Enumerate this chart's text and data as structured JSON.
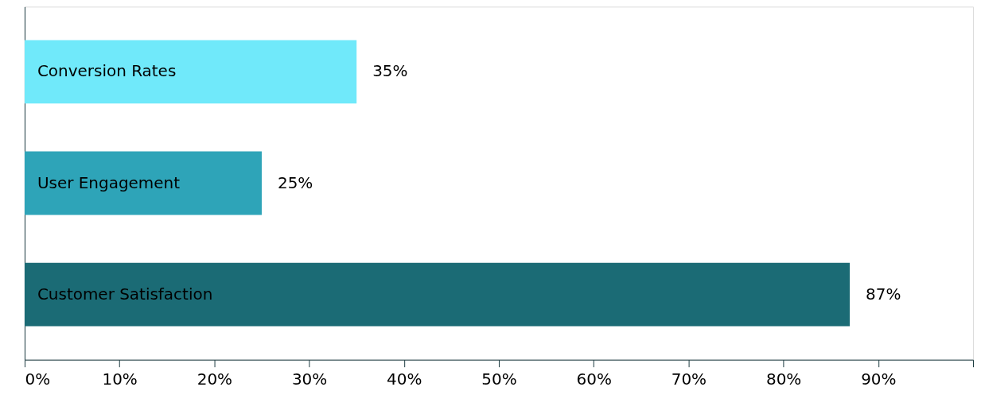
{
  "chart_data": {
    "type": "bar",
    "orientation": "horizontal",
    "categories": [
      "Conversion Rates",
      "User Engagement",
      "Customer Satisfaction"
    ],
    "values": [
      35,
      25,
      87
    ],
    "colors": [
      "#70e9fa",
      "#2ea4b8",
      "#1b6b75"
    ],
    "value_labels": [
      "35%",
      "25%",
      "87%"
    ],
    "xlim": [
      0,
      100
    ],
    "xticks": [
      {
        "value": 0,
        "label": "0%"
      },
      {
        "value": 10,
        "label": "10%"
      },
      {
        "value": 20,
        "label": "20%"
      },
      {
        "value": 30,
        "label": "30%"
      },
      {
        "value": 40,
        "label": "40%"
      },
      {
        "value": 50,
        "label": "50%"
      },
      {
        "value": 60,
        "label": "60%"
      },
      {
        "value": 70,
        "label": "70%"
      },
      {
        "value": 80,
        "label": "80%"
      },
      {
        "value": 90,
        "label": "90%"
      },
      {
        "value": 100,
        "label": null
      }
    ],
    "grid": false
  }
}
